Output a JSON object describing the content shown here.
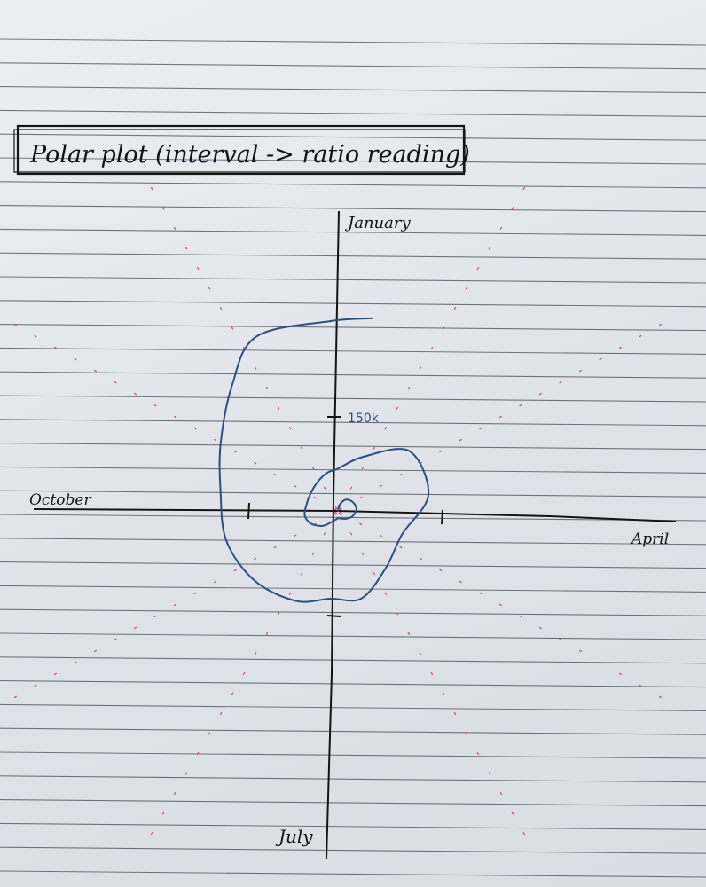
{
  "colors": {
    "ink": "#141414",
    "ruled_line": "#4a4f58",
    "curve": "#2f4f78",
    "guide": "#c8507c"
  },
  "chart_data": {
    "type": "line",
    "projection": "polar",
    "title": "Polar plot (interval -> ratio reading)",
    "angular_labels": {
      "top": "January",
      "right": "April",
      "bottom": "July",
      "left": "October"
    },
    "radial_tick_label": "150k",
    "radial_ticks": [
      150
    ],
    "radial_unit": "thousands",
    "direction": "clockwise",
    "series": [
      {
        "points": [
          {
            "angle_deg": 0,
            "r": 0
          },
          {
            "angle_deg": 15,
            "r": 10
          },
          {
            "angle_deg": 35,
            "r": 22
          },
          {
            "angle_deg": 60,
            "r": 28
          },
          {
            "angle_deg": 85,
            "r": 30
          },
          {
            "angle_deg": 110,
            "r": 25
          },
          {
            "angle_deg": 135,
            "r": 18
          },
          {
            "angle_deg": 160,
            "r": 13
          },
          {
            "angle_deg": 180,
            "r": 12
          },
          {
            "angle_deg": 200,
            "r": 16
          },
          {
            "angle_deg": 225,
            "r": 34
          },
          {
            "angle_deg": 245,
            "r": 48
          },
          {
            "angle_deg": 262,
            "r": 54
          },
          {
            "angle_deg": 278,
            "r": 52
          },
          {
            "angle_deg": 300,
            "r": 52
          },
          {
            "angle_deg": 325,
            "r": 57
          },
          {
            "angle_deg": 345,
            "r": 64
          },
          {
            "angle_deg": 360,
            "r": 68
          },
          {
            "angle_deg": 385,
            "r": 96
          },
          {
            "angle_deg": 410,
            "r": 150
          },
          {
            "angle_deg": 440,
            "r": 148
          },
          {
            "angle_deg": 470,
            "r": 110
          },
          {
            "angle_deg": 500,
            "r": 120
          },
          {
            "angle_deg": 525,
            "r": 146
          },
          {
            "angle_deg": 545,
            "r": 142
          },
          {
            "angle_deg": 565,
            "r": 160
          },
          {
            "angle_deg": 590,
            "r": 175
          },
          {
            "angle_deg": 615,
            "r": 186
          },
          {
            "angle_deg": 640,
            "r": 192
          },
          {
            "angle_deg": 660,
            "r": 218
          },
          {
            "angle_deg": 680,
            "r": 265
          },
          {
            "angle_deg": 695,
            "r": 310
          },
          {
            "angle_deg": 718,
            "r": 306
          },
          {
            "angle_deg": 730,
            "r": 315
          }
        ]
      }
    ]
  }
}
